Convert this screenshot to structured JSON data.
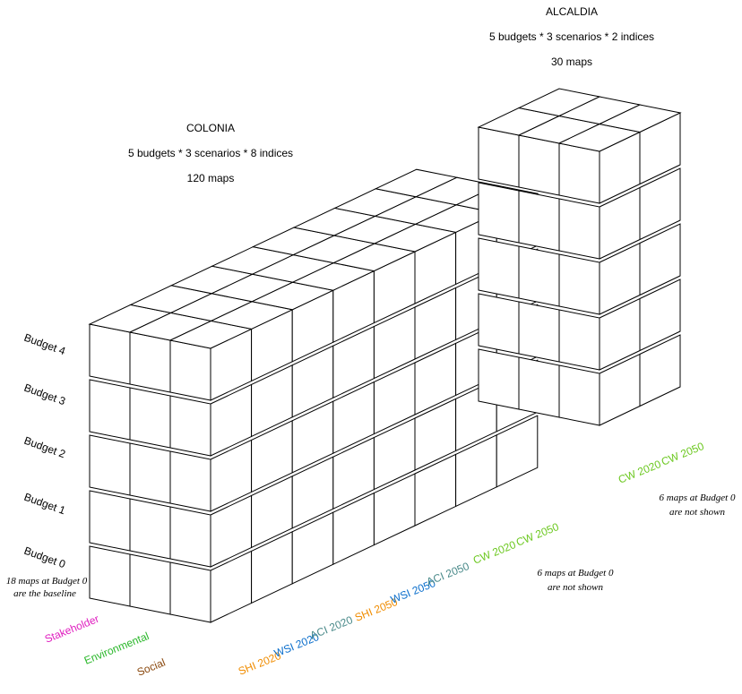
{
  "colonia": {
    "title": "COLONIA",
    "formula": "5 budgets *  3 scenarios * 8 indices",
    "count": "120 maps",
    "budgets": [
      "Budget 0",
      "Budget 1",
      "Budget 2",
      "Budget 3",
      "Budget 4"
    ],
    "scenarios": [
      {
        "label": "Stakeholder",
        "color": "#e020c0"
      },
      {
        "label": "Environmental",
        "color": "#2cb82c"
      },
      {
        "label": "Social",
        "color": "#8b4a10"
      }
    ],
    "indices": [
      {
        "label": "SHI 2020",
        "color": "#f08c00"
      },
      {
        "label": "WSI 2020",
        "color": "#0a6ecc"
      },
      {
        "label": "ACI 2020",
        "color": "#4a8a8a"
      },
      {
        "label": "SHI 2050",
        "color": "#f08c00"
      },
      {
        "label": "WSI 2050",
        "color": "#0a6ecc"
      },
      {
        "label": "ACI 2050",
        "color": "#4a8a8a"
      },
      {
        "label": "CW 2020",
        "color": "#6cc820"
      },
      {
        "label": "CW 2050",
        "color": "#6cc820"
      }
    ],
    "baseline_note_1": "18 maps at Budget 0",
    "baseline_note_2": "are the baseline",
    "hidden_note_1": "6 maps at Budget 0",
    "hidden_note_2": "are not shown"
  },
  "alcaldia": {
    "title": "ALCALDIA",
    "formula": "5 budgets *  3 scenarios * 2 indices",
    "count": "30 maps",
    "indices": [
      {
        "label": "CW 2020",
        "color": "#6cc820"
      },
      {
        "label": "CW 2050",
        "color": "#6cc820"
      }
    ],
    "hidden_note_1": "6 maps at Budget 0",
    "hidden_note_2": "are not shown"
  },
  "colors": {
    "stroke": "#000000",
    "face": "#ffffff"
  }
}
